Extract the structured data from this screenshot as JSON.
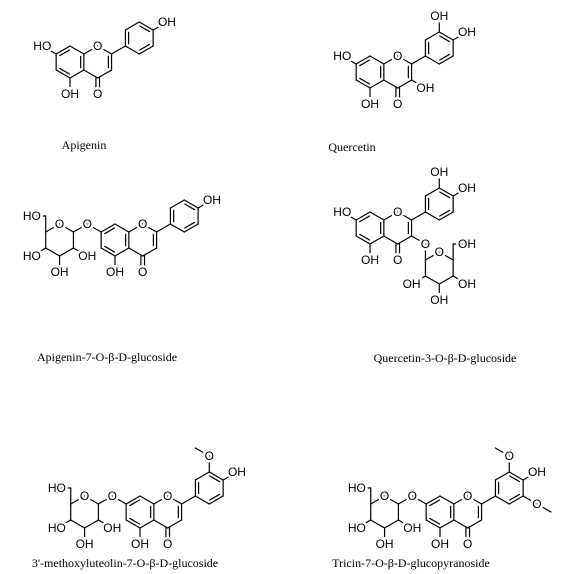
{
  "compounds": [
    {
      "name": "Apigenin",
      "atoms": {
        "O1": "O",
        "O7": "HO",
        "O5": "OH",
        "C4O": "O",
        "O4p": "OH"
      }
    },
    {
      "name": "Quercetin",
      "atoms": {
        "O1": "O",
        "O7": "HO",
        "O5": "OH",
        "C4O": "O",
        "O3": "OH",
        "O3p": "OH",
        "O4p": "OH"
      }
    },
    {
      "name": "Apigenin-7-O-β-D-glucoside",
      "atoms": {
        "O1": "O",
        "O7": "O",
        "O5": "OH",
        "C4O": "O",
        "O4p": "OH",
        "sO": "O",
        "sO6": "HO",
        "sO2": "OH",
        "sO3": "OH",
        "sO4": "HO"
      }
    },
    {
      "name": "Quercetin-3-O-β-D-glucoside",
      "atoms": {
        "O1": "O",
        "O7": "HO",
        "O5": "OH",
        "C4O": "O",
        "O3": "O",
        "O3p": "OH",
        "O4p": "OH",
        "sO": "O",
        "sO6": "OH",
        "sO2": "OH",
        "sO3": "OH",
        "sO4": "OH"
      }
    },
    {
      "name": "3'-methoxyluteolin-7-O-β-D-glucoside",
      "atoms": {
        "O1": "O",
        "O7": "O",
        "O5": "OH",
        "C4O": "O",
        "O3p": "O",
        "O4p": "OH",
        "sO": "O",
        "sO6": "HO",
        "sO2": "OH",
        "sO3": "OH",
        "sO4": "HO"
      }
    },
    {
      "name": "Tricin-7-O-β-D-glucopyranoside",
      "atoms": {
        "O1": "O",
        "O7": "O",
        "O5": "OH",
        "C4O": "O",
        "O3p": "O",
        "O4p": "OH",
        "O5p": "O",
        "sO": "O",
        "sO6": "HO",
        "sO2": "OH",
        "sO3": "OH",
        "sO4": "HO"
      }
    }
  ]
}
